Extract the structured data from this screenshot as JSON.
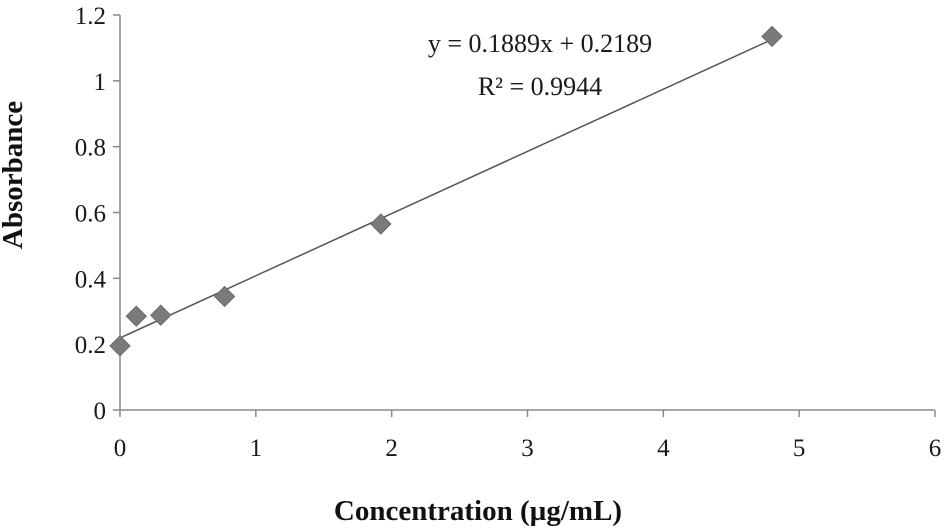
{
  "chart_data": {
    "type": "scatter",
    "xlabel": "Concentration (µg/mL)",
    "ylabel": "Absorbance",
    "xlim": [
      0,
      6
    ],
    "ylim": [
      0,
      1.2
    ],
    "x_ticks": [
      0,
      1,
      2,
      3,
      4,
      5,
      6
    ],
    "y_ticks": [
      0,
      0.2,
      0.4,
      0.6,
      0.8,
      1,
      1.2
    ],
    "x_tick_labels": [
      "0",
      "1",
      "2",
      "3",
      "4",
      "5",
      "6"
    ],
    "y_tick_labels": [
      "0",
      "0.2",
      "0.4",
      "0.6",
      "0.8",
      "1",
      "1.2"
    ],
    "series": [
      {
        "marker": "diamond",
        "color": "#7a7a7a",
        "x": [
          0,
          0.12,
          0.3,
          0.77,
          1.92,
          4.8
        ],
        "y": [
          0.195,
          0.285,
          0.288,
          0.345,
          0.565,
          1.135
        ]
      }
    ],
    "trendline": {
      "slope": 0.1889,
      "intercept": 0.2189,
      "x_range": [
        0,
        4.8
      ],
      "color": "#555555"
    },
    "annotations": {
      "equation": "y = 0.1889x + 0.2189",
      "r_squared": "R² = 0.9944"
    },
    "grid": false,
    "legend": "none"
  }
}
